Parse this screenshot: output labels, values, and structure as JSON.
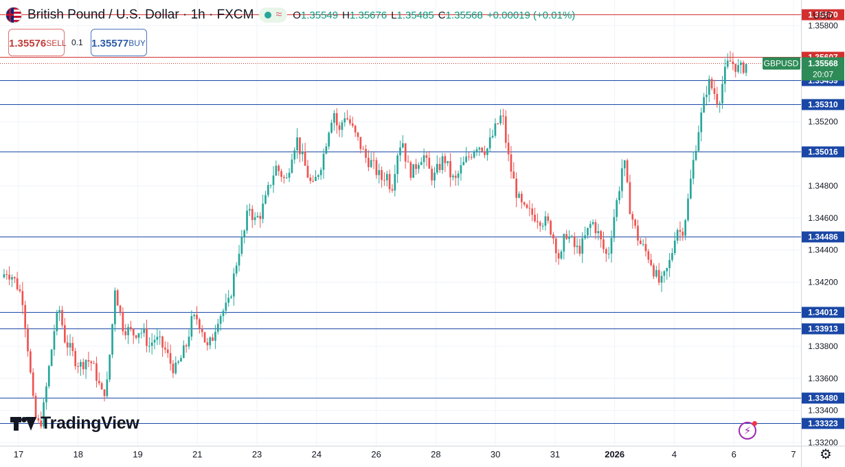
{
  "header": {
    "title": "British Pound / U.S. Dollar · 1h · FXCM",
    "status_icon": "wave-icon",
    "ohlc": {
      "o_label": "O",
      "o": "1.35549",
      "h_label": "H",
      "h": "1.35676",
      "l_label": "L",
      "l": "1.35485",
      "c_label": "C",
      "c": "1.35568",
      "change": "+0.00019 (+0.01%)"
    }
  },
  "trade": {
    "sell_price": "1.35576",
    "sell_label": "SELL",
    "buy_price": "1.35577",
    "buy_label": "BUY",
    "spread": "0.1"
  },
  "currency": "USD",
  "branding": {
    "logo_text": "TradingView"
  },
  "chart_data": {
    "type": "candlestick",
    "symbol": "GBPUSD",
    "timeframe": "1h",
    "ylim": [
      1.3318,
      1.3596
    ],
    "y_ticks": [
      "1.35800",
      "1.35200",
      "1.34800",
      "1.34600",
      "1.34400",
      "1.34200",
      "1.33800",
      "1.33600",
      "1.33400",
      "1.33200"
    ],
    "x_labels": [
      "17",
      "18",
      "19",
      "21",
      "23",
      "24",
      "26",
      "28",
      "30",
      "31",
      "2026",
      "4",
      "6",
      "7"
    ],
    "x_label_bold": "2026",
    "current_price": {
      "symbol": "GBPUSD",
      "value": "1.35568",
      "countdown": "20:07",
      "color": "#2e8b57"
    },
    "levels": [
      {
        "value": "1.35870",
        "color": "#d32f2f"
      },
      {
        "value": "1.35607",
        "color": "#d32f2f"
      },
      {
        "value": "1.35459",
        "color": "#1a47a6"
      },
      {
        "value": "1.35310",
        "color": "#1a47a6"
      },
      {
        "value": "1.35016",
        "color": "#1a47a6"
      },
      {
        "value": "1.34486",
        "color": "#1a47a6"
      },
      {
        "value": "1.34012",
        "color": "#1a47a6"
      },
      {
        "value": "1.33913",
        "color": "#1a47a6"
      },
      {
        "value": "1.33480",
        "color": "#1a47a6"
      },
      {
        "value": "1.33323",
        "color": "#1a47a6"
      }
    ],
    "up_color": "#26a69a",
    "down_color": "#ef5350",
    "path": [
      [
        0,
        1.3423
      ],
      [
        4,
        1.3427
      ],
      [
        8,
        1.3424
      ],
      [
        12,
        1.3418
      ],
      [
        16,
        1.341
      ],
      [
        20,
        1.338
      ],
      [
        24,
        1.3345
      ],
      [
        27,
        1.333
      ],
      [
        31,
        1.3335
      ],
      [
        35,
        1.336
      ],
      [
        40,
        1.339
      ],
      [
        44,
        1.3403
      ],
      [
        48,
        1.3385
      ],
      [
        52,
        1.3378
      ],
      [
        56,
        1.3372
      ],
      [
        60,
        1.3368
      ],
      [
        64,
        1.3372
      ],
      [
        68,
        1.337
      ],
      [
        72,
        1.3362
      ],
      [
        76,
        1.335
      ],
      [
        80,
        1.3355
      ],
      [
        84,
        1.3392
      ],
      [
        86,
        1.3418
      ],
      [
        89,
        1.3405
      ],
      [
        92,
        1.3393
      ],
      [
        96,
        1.339
      ],
      [
        100,
        1.3388
      ],
      [
        104,
        1.339
      ],
      [
        108,
        1.3388
      ],
      [
        112,
        1.338
      ],
      [
        116,
        1.3385
      ],
      [
        120,
        1.3382
      ],
      [
        124,
        1.3378
      ],
      [
        128,
        1.337
      ],
      [
        132,
        1.3365
      ],
      [
        136,
        1.3372
      ],
      [
        140,
        1.338
      ],
      [
        144,
        1.3395
      ],
      [
        148,
        1.3398
      ],
      [
        152,
        1.3392
      ],
      [
        156,
        1.3378
      ],
      [
        160,
        1.3385
      ],
      [
        164,
        1.3398
      ],
      [
        168,
        1.3402
      ],
      [
        172,
        1.3405
      ],
      [
        176,
        1.3422
      ],
      [
        180,
        1.344
      ],
      [
        184,
        1.345
      ],
      [
        188,
        1.3468
      ],
      [
        192,
        1.3458
      ],
      [
        196,
        1.3462
      ],
      [
        200,
        1.347
      ],
      [
        204,
        1.3482
      ],
      [
        208,
        1.3492
      ],
      [
        212,
        1.3488
      ],
      [
        216,
        1.3482
      ],
      [
        220,
        1.35
      ],
      [
        224,
        1.351
      ],
      [
        228,
        1.3498
      ],
      [
        232,
        1.3488
      ],
      [
        236,
        1.3478
      ],
      [
        240,
        1.3488
      ],
      [
        244,
        1.3498
      ],
      [
        248,
        1.3515
      ],
      [
        252,
        1.3528
      ],
      [
        256,
        1.3512
      ],
      [
        260,
        1.3525
      ],
      [
        264,
        1.352
      ],
      [
        268,
        1.3512
      ],
      [
        272,
        1.3506
      ],
      [
        276,
        1.3498
      ],
      [
        280,
        1.3495
      ],
      [
        284,
        1.349
      ],
      [
        288,
        1.3484
      ],
      [
        292,
        1.3488
      ],
      [
        296,
        1.3478
      ],
      [
        300,
        1.35
      ],
      [
        304,
        1.351
      ],
      [
        308,
        1.3492
      ],
      [
        312,
        1.3488
      ],
      [
        316,
        1.3496
      ],
      [
        320,
        1.35
      ],
      [
        324,
        1.349
      ],
      [
        328,
        1.3485
      ],
      [
        332,
        1.3492
      ],
      [
        336,
        1.3498
      ],
      [
        340,
        1.3488
      ],
      [
        344,
        1.3482
      ],
      [
        348,
        1.349
      ],
      [
        352,
        1.3495
      ],
      [
        356,
        1.35
      ],
      [
        360,
        1.3506
      ],
      [
        364,
        1.3505
      ],
      [
        368,
        1.3502
      ],
      [
        372,
        1.351
      ],
      [
        376,
        1.3518
      ],
      [
        380,
        1.3525
      ],
      [
        384,
        1.35
      ],
      [
        388,
        1.3485
      ],
      [
        392,
        1.3472
      ],
      [
        396,
        1.3465
      ],
      [
        400,
        1.3463
      ],
      [
        404,
        1.3462
      ],
      [
        408,
        1.346
      ],
      [
        412,
        1.3458
      ],
      [
        416,
        1.3455
      ],
      [
        420,
        1.3445
      ],
      [
        424,
        1.3432
      ],
      [
        428,
        1.3452
      ],
      [
        432,
        1.3446
      ],
      [
        436,
        1.344
      ],
      [
        440,
        1.3442
      ],
      [
        444,
        1.345
      ],
      [
        448,
        1.3458
      ],
      [
        452,
        1.3452
      ],
      [
        456,
        1.3442
      ],
      [
        460,
        1.3435
      ],
      [
        464,
        1.3458
      ],
      [
        468,
        1.3475
      ],
      [
        472,
        1.3498
      ],
      [
        476,
        1.347
      ],
      [
        480,
        1.3455
      ],
      [
        484,
        1.3445
      ],
      [
        488,
        1.344
      ],
      [
        492,
        1.3435
      ],
      [
        496,
        1.3425
      ],
      [
        500,
        1.3418
      ],
      [
        504,
        1.3425
      ],
      [
        508,
        1.3435
      ],
      [
        512,
        1.3455
      ],
      [
        516,
        1.345
      ],
      [
        520,
        1.3465
      ],
      [
        524,
        1.349
      ],
      [
        528,
        1.3512
      ],
      [
        532,
        1.3528
      ],
      [
        536,
        1.3545
      ],
      [
        540,
        1.354
      ],
      [
        544,
        1.3532
      ],
      [
        548,
        1.3548
      ],
      [
        552,
        1.3558
      ],
      [
        556,
        1.3556
      ],
      [
        560,
        1.3552
      ],
      [
        565,
        1.3556
      ]
    ]
  }
}
